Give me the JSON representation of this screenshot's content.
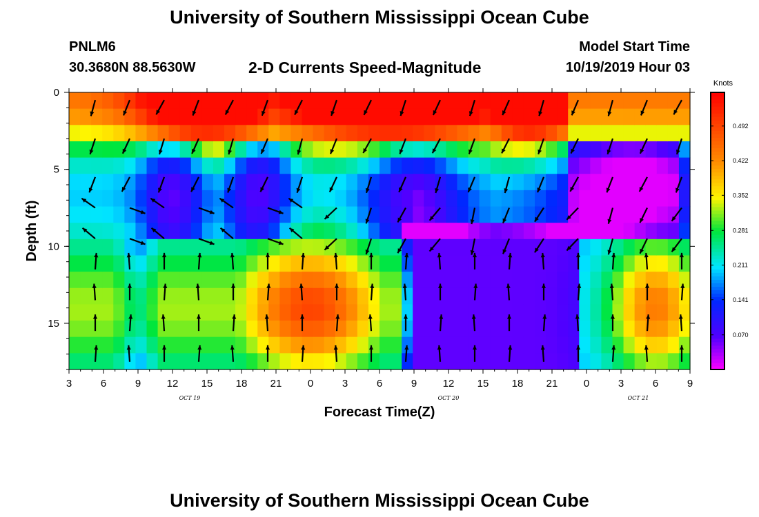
{
  "header": {
    "main_title": "University of Southern Mississippi Ocean Cube",
    "station_id": "PNLM6",
    "station_coords": "30.3680N 88.5630W",
    "subtitle": "2-D Currents Speed-Magnitude",
    "model_start_label": "Model Start Time",
    "model_start_value": "10/19/2019 Hour 03"
  },
  "footer": {
    "title": "University of Southern Mississippi Ocean Cube"
  },
  "chart_data": {
    "type": "heatmap",
    "title": "2-D Currents Speed-Magnitude",
    "xlabel": "Forecast Time(Z)",
    "ylabel": "Depth (ft)",
    "x_tick_labels": [
      "3",
      "6",
      "9",
      "12",
      "15",
      "18",
      "21",
      "0",
      "3",
      "6",
      "9",
      "12",
      "15",
      "18",
      "21",
      "0",
      "3",
      "6",
      "9"
    ],
    "x_hours": [
      0,
      3,
      6,
      9,
      12,
      15,
      18,
      21,
      24,
      27,
      30,
      33,
      36,
      39,
      42,
      45,
      48,
      51,
      54
    ],
    "date_labels": [
      {
        "label": "OCT 19",
        "hour": 10.5
      },
      {
        "label": "OCT 20",
        "hour": 33
      },
      {
        "label": "OCT 21",
        "hour": 49.5
      }
    ],
    "y_ticks": [
      0,
      5,
      10,
      15
    ],
    "ylim": [
      0,
      18
    ],
    "y_inverted": true,
    "colorbar": {
      "title": "Knots",
      "ticks": [
        "0.492",
        "0.422",
        "0.352",
        "0.281",
        "0.211",
        "0.141",
        "0.070"
      ],
      "tick_values": [
        0.492,
        0.422,
        0.352,
        0.281,
        0.211,
        0.141,
        0.07
      ],
      "range": [
        0,
        0.56
      ]
    },
    "grid": false,
    "vector_overlay": true
  }
}
